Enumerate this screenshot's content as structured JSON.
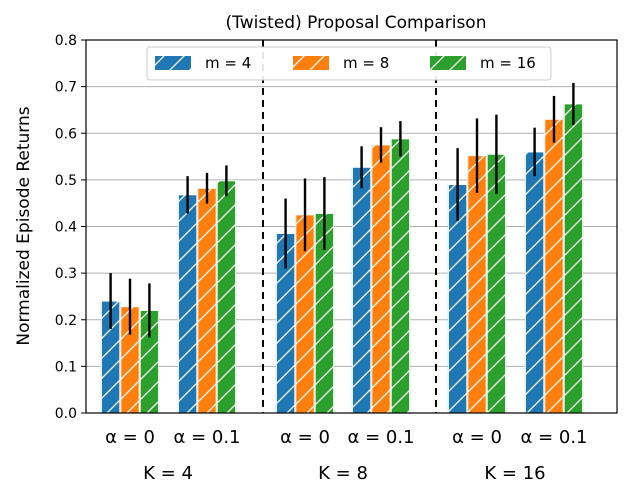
{
  "chart_data": {
    "type": "bar",
    "title": "(Twisted) Proposal Comparison",
    "xlabel": "",
    "ylabel": "Normalized Episode Returns",
    "ylim": [
      0,
      0.8
    ],
    "yticks": [
      0.0,
      0.1,
      0.2,
      0.3,
      0.4,
      0.5,
      0.6,
      0.7,
      0.8
    ],
    "ytick_labels": [
      "0.0",
      "0.1",
      "0.2",
      "0.3",
      "0.4",
      "0.5",
      "0.6",
      "0.7",
      "0.8"
    ],
    "grid": "horizontal",
    "legend_position": "top-center",
    "categories": [
      "α = 0",
      "α = 0.1",
      "α = 0",
      "α = 0.1",
      "α = 0",
      "α = 0.1"
    ],
    "groups": [
      "K = 4",
      "K = 8",
      "K = 16"
    ],
    "series": [
      {
        "name": "m = 4",
        "color": "#1f77b4",
        "values": [
          0.24,
          0.468,
          0.385,
          0.527,
          0.49,
          0.56
        ],
        "error": [
          0.06,
          0.04,
          0.075,
          0.045,
          0.078,
          0.052
        ]
      },
      {
        "name": "m = 8",
        "color": "#ff7f0e",
        "values": [
          0.228,
          0.482,
          0.425,
          0.575,
          0.552,
          0.63
        ],
        "error": [
          0.06,
          0.033,
          0.078,
          0.038,
          0.08,
          0.05
        ]
      },
      {
        "name": "m = 16",
        "color": "#2ca02c",
        "values": [
          0.22,
          0.498,
          0.428,
          0.588,
          0.555,
          0.663
        ],
        "error": [
          0.058,
          0.033,
          0.078,
          0.038,
          0.085,
          0.045
        ]
      }
    ]
  }
}
